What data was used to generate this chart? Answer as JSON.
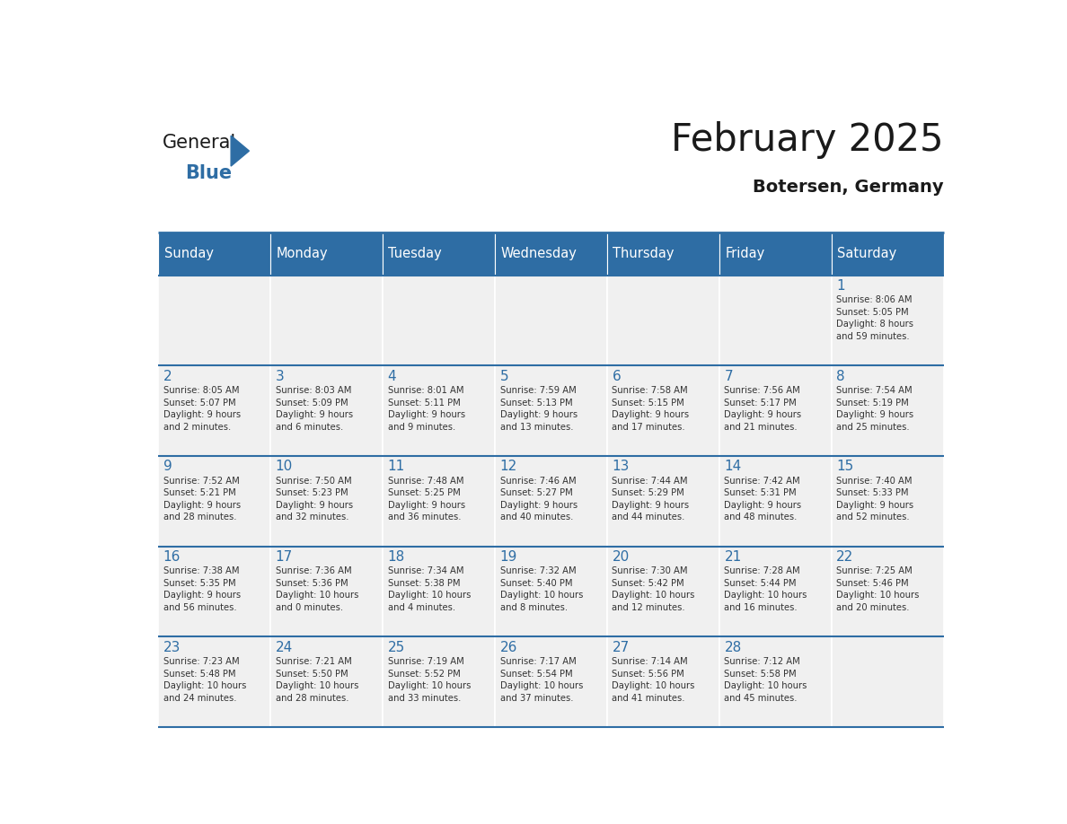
{
  "title": "February 2025",
  "subtitle": "Botersen, Germany",
  "header_bg": "#2E6DA4",
  "header_text_color": "#FFFFFF",
  "cell_bg_light": "#F0F0F0",
  "cell_bg_white": "#FFFFFF",
  "day_names": [
    "Sunday",
    "Monday",
    "Tuesday",
    "Wednesday",
    "Thursday",
    "Friday",
    "Saturday"
  ],
  "title_color": "#1a1a1a",
  "subtitle_color": "#1a1a1a",
  "day_number_color": "#2E6DA4",
  "cell_text_color": "#333333",
  "line_color": "#2E6DA4",
  "logo_general_color": "#1a1a1a",
  "logo_blue_color": "#2E6DA4",
  "weeks": [
    [
      {
        "day": null,
        "info": null
      },
      {
        "day": null,
        "info": null
      },
      {
        "day": null,
        "info": null
      },
      {
        "day": null,
        "info": null
      },
      {
        "day": null,
        "info": null
      },
      {
        "day": null,
        "info": null
      },
      {
        "day": 1,
        "info": "Sunrise: 8:06 AM\nSunset: 5:05 PM\nDaylight: 8 hours\nand 59 minutes."
      }
    ],
    [
      {
        "day": 2,
        "info": "Sunrise: 8:05 AM\nSunset: 5:07 PM\nDaylight: 9 hours\nand 2 minutes."
      },
      {
        "day": 3,
        "info": "Sunrise: 8:03 AM\nSunset: 5:09 PM\nDaylight: 9 hours\nand 6 minutes."
      },
      {
        "day": 4,
        "info": "Sunrise: 8:01 AM\nSunset: 5:11 PM\nDaylight: 9 hours\nand 9 minutes."
      },
      {
        "day": 5,
        "info": "Sunrise: 7:59 AM\nSunset: 5:13 PM\nDaylight: 9 hours\nand 13 minutes."
      },
      {
        "day": 6,
        "info": "Sunrise: 7:58 AM\nSunset: 5:15 PM\nDaylight: 9 hours\nand 17 minutes."
      },
      {
        "day": 7,
        "info": "Sunrise: 7:56 AM\nSunset: 5:17 PM\nDaylight: 9 hours\nand 21 minutes."
      },
      {
        "day": 8,
        "info": "Sunrise: 7:54 AM\nSunset: 5:19 PM\nDaylight: 9 hours\nand 25 minutes."
      }
    ],
    [
      {
        "day": 9,
        "info": "Sunrise: 7:52 AM\nSunset: 5:21 PM\nDaylight: 9 hours\nand 28 minutes."
      },
      {
        "day": 10,
        "info": "Sunrise: 7:50 AM\nSunset: 5:23 PM\nDaylight: 9 hours\nand 32 minutes."
      },
      {
        "day": 11,
        "info": "Sunrise: 7:48 AM\nSunset: 5:25 PM\nDaylight: 9 hours\nand 36 minutes."
      },
      {
        "day": 12,
        "info": "Sunrise: 7:46 AM\nSunset: 5:27 PM\nDaylight: 9 hours\nand 40 minutes."
      },
      {
        "day": 13,
        "info": "Sunrise: 7:44 AM\nSunset: 5:29 PM\nDaylight: 9 hours\nand 44 minutes."
      },
      {
        "day": 14,
        "info": "Sunrise: 7:42 AM\nSunset: 5:31 PM\nDaylight: 9 hours\nand 48 minutes."
      },
      {
        "day": 15,
        "info": "Sunrise: 7:40 AM\nSunset: 5:33 PM\nDaylight: 9 hours\nand 52 minutes."
      }
    ],
    [
      {
        "day": 16,
        "info": "Sunrise: 7:38 AM\nSunset: 5:35 PM\nDaylight: 9 hours\nand 56 minutes."
      },
      {
        "day": 17,
        "info": "Sunrise: 7:36 AM\nSunset: 5:36 PM\nDaylight: 10 hours\nand 0 minutes."
      },
      {
        "day": 18,
        "info": "Sunrise: 7:34 AM\nSunset: 5:38 PM\nDaylight: 10 hours\nand 4 minutes."
      },
      {
        "day": 19,
        "info": "Sunrise: 7:32 AM\nSunset: 5:40 PM\nDaylight: 10 hours\nand 8 minutes."
      },
      {
        "day": 20,
        "info": "Sunrise: 7:30 AM\nSunset: 5:42 PM\nDaylight: 10 hours\nand 12 minutes."
      },
      {
        "day": 21,
        "info": "Sunrise: 7:28 AM\nSunset: 5:44 PM\nDaylight: 10 hours\nand 16 minutes."
      },
      {
        "day": 22,
        "info": "Sunrise: 7:25 AM\nSunset: 5:46 PM\nDaylight: 10 hours\nand 20 minutes."
      }
    ],
    [
      {
        "day": 23,
        "info": "Sunrise: 7:23 AM\nSunset: 5:48 PM\nDaylight: 10 hours\nand 24 minutes."
      },
      {
        "day": 24,
        "info": "Sunrise: 7:21 AM\nSunset: 5:50 PM\nDaylight: 10 hours\nand 28 minutes."
      },
      {
        "day": 25,
        "info": "Sunrise: 7:19 AM\nSunset: 5:52 PM\nDaylight: 10 hours\nand 33 minutes."
      },
      {
        "day": 26,
        "info": "Sunrise: 7:17 AM\nSunset: 5:54 PM\nDaylight: 10 hours\nand 37 minutes."
      },
      {
        "day": 27,
        "info": "Sunrise: 7:14 AM\nSunset: 5:56 PM\nDaylight: 10 hours\nand 41 minutes."
      },
      {
        "day": 28,
        "info": "Sunrise: 7:12 AM\nSunset: 5:58 PM\nDaylight: 10 hours\nand 45 minutes."
      },
      {
        "day": null,
        "info": null
      }
    ]
  ]
}
